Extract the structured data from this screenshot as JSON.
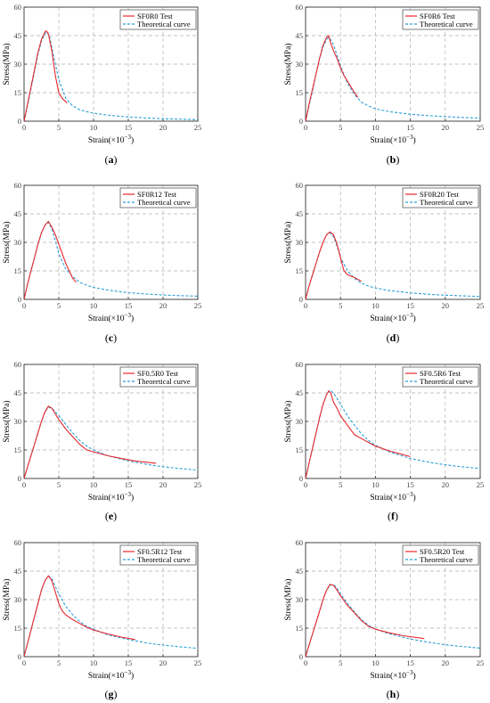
{
  "axes": {
    "xlabel": "Strain(×10",
    "xlabel_exp": "−3",
    "xlabel_close": ")",
    "ylabel": "Stress(MPa)",
    "xticks": [
      "0",
      "5",
      "10",
      "15",
      "20",
      "25"
    ],
    "yticks": [
      "0",
      "15",
      "30",
      "45",
      "60"
    ]
  },
  "legend": {
    "theory": "Theoretical curve"
  },
  "colors": {
    "test": "#e8262b",
    "theory": "#2a9fd6",
    "grid": "#b0b0b0"
  },
  "chart_data": [
    {
      "type": "line",
      "label": "(a)",
      "test_name": "SF0R0 Test",
      "xlim": [
        0,
        25
      ],
      "ylim": [
        0,
        60
      ],
      "grid": true,
      "legend_position": "top-right",
      "series": [
        {
          "name": "SF0R0 Test",
          "x": [
            0,
            0.5,
            1,
            1.5,
            2,
            2.5,
            3,
            3.2,
            3.5,
            4,
            4.5,
            5,
            5.5,
            6.2
          ],
          "y": [
            0,
            9,
            18,
            27,
            36,
            43,
            47,
            47.5,
            46,
            37,
            24,
            15,
            12,
            9.5
          ]
        },
        {
          "name": "Theoretical curve",
          "x": [
            0,
            0.5,
            1,
            1.5,
            2,
            2.5,
            3,
            3.3,
            3.7,
            4.2,
            5,
            6,
            7,
            8,
            9,
            10,
            12,
            15,
            18,
            20,
            22,
            25
          ],
          "y": [
            0,
            8,
            17,
            26,
            35,
            42,
            46,
            47,
            44,
            35,
            22,
            12,
            8,
            6,
            5,
            4.2,
            3.2,
            2.2,
            1.6,
            1.3,
            1.1,
            0.8
          ]
        }
      ]
    },
    {
      "type": "line",
      "label": "(b)",
      "test_name": "SF0R6 Test",
      "xlim": [
        0,
        25
      ],
      "ylim": [
        0,
        60
      ],
      "grid": true,
      "legend_position": "top-right",
      "series": [
        {
          "name": "SF0R6 Test",
          "x": [
            0,
            0.5,
            1,
            1.5,
            2,
            2.5,
            3,
            3.3,
            3.6,
            4,
            4.5,
            5,
            5.5,
            6,
            6.5,
            7,
            7.5
          ],
          "y": [
            0,
            9,
            17,
            25,
            33,
            40,
            44,
            45,
            41,
            37,
            33,
            28,
            24,
            21,
            18,
            15,
            12.5
          ]
        },
        {
          "name": "Theoretical curve",
          "x": [
            0,
            0.5,
            1,
            1.5,
            2,
            2.5,
            3,
            3.3,
            3.8,
            4.3,
            5,
            6,
            7,
            8,
            9,
            10,
            12,
            15,
            18,
            20,
            22,
            25
          ],
          "y": [
            0,
            8,
            16,
            25,
            33,
            39,
            43,
            44,
            42,
            37,
            29,
            20,
            14,
            10,
            8,
            6.5,
            5,
            3.6,
            2.8,
            2.4,
            2,
            1.6
          ]
        }
      ]
    },
    {
      "type": "line",
      "label": "(c)",
      "test_name": "SF0R12 Test",
      "xlim": [
        0,
        25
      ],
      "ylim": [
        0,
        60
      ],
      "grid": true,
      "legend_position": "top-right",
      "series": [
        {
          "name": "SF0R12 Test",
          "x": [
            0,
            0.5,
            1,
            1.5,
            2,
            2.5,
            3,
            3.5,
            4,
            4.5,
            5,
            5.5,
            6,
            6.5,
            7,
            7.5
          ],
          "y": [
            0,
            8,
            15,
            22,
            29,
            35,
            39,
            41,
            38,
            34,
            29,
            24,
            19,
            15,
            11,
            9
          ]
        },
        {
          "name": "Theoretical curve",
          "x": [
            0,
            0.5,
            1,
            1.5,
            2,
            2.5,
            3,
            3.5,
            4,
            4.5,
            5,
            6,
            7,
            8,
            9,
            10,
            12,
            15,
            18,
            20,
            22,
            25
          ],
          "y": [
            0,
            8,
            15,
            22,
            29,
            35,
            39,
            40.5,
            37,
            31,
            24,
            16,
            12,
            9,
            7.5,
            6.3,
            4.9,
            3.5,
            2.7,
            2.3,
            2,
            1.7
          ]
        }
      ]
    },
    {
      "type": "line",
      "label": "(d)",
      "test_name": "SF0R20 Test",
      "xlim": [
        0,
        25
      ],
      "ylim": [
        0,
        60
      ],
      "grid": true,
      "legend_position": "top-right",
      "series": [
        {
          "name": "SF0R20 Test",
          "x": [
            0,
            0.5,
            1,
            1.5,
            2,
            2.5,
            3,
            3.5,
            4,
            4.5,
            5,
            5.5,
            6,
            7,
            8
          ],
          "y": [
            0,
            7,
            13,
            19,
            25,
            30,
            34,
            35.5,
            34,
            29,
            22,
            15,
            13,
            11.5,
            9.5
          ]
        },
        {
          "name": "Theoretical curve",
          "x": [
            0,
            0.5,
            1,
            1.5,
            2,
            2.5,
            3,
            3.5,
            4,
            4.5,
            5,
            6,
            7,
            8,
            9,
            10,
            12,
            15,
            18,
            20,
            22,
            25
          ],
          "y": [
            0,
            7,
            13,
            19,
            25,
            30,
            34,
            35,
            33,
            28,
            22,
            15,
            11,
            8.5,
            7,
            6,
            4.6,
            3.4,
            2.6,
            2.2,
            1.9,
            1.5
          ]
        }
      ]
    },
    {
      "type": "line",
      "label": "(e)",
      "test_name": "SF0.5R0 Test",
      "xlim": [
        0,
        25
      ],
      "ylim": [
        0,
        60
      ],
      "grid": true,
      "legend_position": "top-right",
      "series": [
        {
          "name": "SF0.5R0 Test",
          "x": [
            0,
            0.5,
            1,
            1.5,
            2,
            2.5,
            3,
            3.5,
            4,
            4.5,
            5,
            6,
            7,
            8,
            9,
            10,
            12,
            14,
            16,
            19
          ],
          "y": [
            0,
            6,
            12,
            18,
            24,
            30,
            35,
            38,
            37,
            34,
            31,
            26,
            22,
            18,
            15,
            14,
            12,
            10.5,
            9.2,
            8
          ]
        },
        {
          "name": "Theoretical curve",
          "x": [
            0,
            0.5,
            1,
            1.5,
            2,
            2.5,
            3,
            3.5,
            4,
            4.5,
            5,
            6,
            7,
            8,
            9,
            10,
            12,
            15,
            18,
            20,
            22,
            25
          ],
          "y": [
            0,
            6,
            12,
            18,
            24,
            30,
            35,
            37.5,
            37,
            35,
            33,
            28.5,
            24,
            20,
            17,
            15,
            12,
            9.2,
            7.2,
            6.2,
            5.4,
            4.4
          ]
        }
      ]
    },
    {
      "type": "line",
      "label": "(f)",
      "test_name": "SF0.5R6 Test",
      "xlim": [
        0,
        25
      ],
      "ylim": [
        0,
        60
      ],
      "grid": true,
      "legend_position": "top-right",
      "series": [
        {
          "name": "SF0.5R6 Test",
          "x": [
            0,
            0.5,
            1,
            1.5,
            2,
            2.5,
            3,
            3.3,
            3.6,
            4,
            4.5,
            5,
            6,
            7,
            8,
            9,
            10,
            12,
            15
          ],
          "y": [
            0,
            8,
            16,
            24,
            32,
            39,
            44,
            46,
            45,
            40,
            37,
            33,
            28,
            23,
            21,
            19,
            17,
            14.5,
            11.5
          ]
        },
        {
          "name": "Theoretical curve",
          "x": [
            0,
            0.5,
            1,
            1.5,
            2,
            2.5,
            3,
            3.5,
            4,
            4.5,
            5,
            6,
            7,
            8,
            9,
            10,
            12,
            15,
            18,
            20,
            22,
            25
          ],
          "y": [
            0,
            8,
            16,
            24,
            32,
            39,
            44,
            46.5,
            45,
            42,
            39,
            33,
            28,
            23.5,
            20,
            17.5,
            14,
            10.5,
            8.3,
            7.2,
            6.3,
            5.2
          ]
        }
      ]
    },
    {
      "type": "line",
      "label": "(g)",
      "test_name": "SF0.5R12 Test",
      "xlim": [
        0,
        25
      ],
      "ylim": [
        0,
        60
      ],
      "grid": true,
      "legend_position": "top-right",
      "series": [
        {
          "name": "SF0.5R12 Test",
          "x": [
            0,
            0.5,
            1,
            1.5,
            2,
            2.5,
            3,
            3.5,
            4,
            4.5,
            5,
            5.5,
            6,
            7,
            8,
            9,
            10,
            12,
            14,
            16
          ],
          "y": [
            0,
            7,
            14,
            21,
            28,
            35,
            40,
            42.5,
            40,
            34,
            28,
            24,
            22,
            19.5,
            17.5,
            15.5,
            14,
            12,
            10.3,
            9
          ]
        },
        {
          "name": "Theoretical curve",
          "x": [
            0,
            0.5,
            1,
            1.5,
            2,
            2.5,
            3,
            3.5,
            4,
            4.5,
            5,
            6,
            7,
            8,
            9,
            10,
            12,
            15,
            18,
            20,
            22,
            25
          ],
          "y": [
            0,
            7,
            14,
            21,
            28,
            35,
            40,
            42.5,
            41,
            37,
            33,
            26.5,
            22,
            18.5,
            16,
            14.5,
            11.5,
            9,
            7,
            6.1,
            5.3,
            4.4
          ]
        }
      ]
    },
    {
      "type": "line",
      "label": "(h)",
      "test_name": "SF0.5R20 Test",
      "xlim": [
        0,
        25
      ],
      "ylim": [
        0,
        60
      ],
      "grid": true,
      "legend_position": "top-right",
      "series": [
        {
          "name": "SF0.5R20 Test",
          "x": [
            0,
            0.5,
            1,
            1.5,
            2,
            2.5,
            3,
            3.5,
            4,
            4.5,
            5,
            6,
            7,
            8,
            9,
            10,
            12,
            14,
            17
          ],
          "y": [
            0,
            6,
            12,
            18,
            24,
            30,
            35,
            38,
            37.5,
            35,
            32,
            27,
            23,
            19,
            16,
            14.5,
            12.5,
            11,
            9.5
          ]
        },
        {
          "name": "Theoretical curve",
          "x": [
            0,
            0.5,
            1,
            1.5,
            2,
            2.5,
            3,
            3.5,
            4,
            4.5,
            5,
            6,
            7,
            8,
            9,
            10,
            12,
            15,
            18,
            20,
            22,
            25
          ],
          "y": [
            0,
            6,
            12,
            18,
            24,
            30,
            35,
            37.5,
            38,
            36,
            33,
            28,
            23.5,
            19.5,
            16.5,
            14.5,
            12,
            9.3,
            7.3,
            6.3,
            5.5,
            4.5
          ]
        }
      ]
    }
  ]
}
